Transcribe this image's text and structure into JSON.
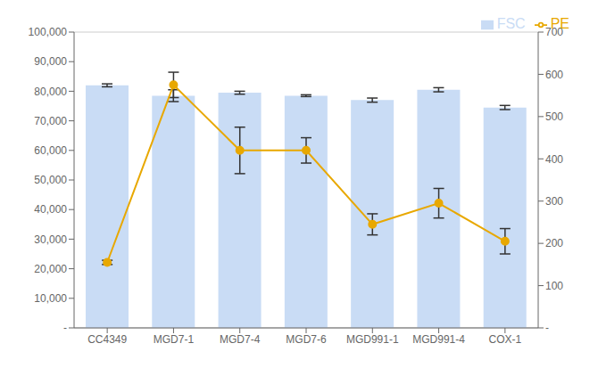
{
  "chart_data": {
    "type": "bar",
    "categories": [
      "CC4349",
      "MGD7-1",
      "MGD7-4",
      "MGD7-6",
      "MGD991-1",
      "MGD991-4",
      "COX-1"
    ],
    "series": [
      {
        "name": "FSC",
        "type": "bar",
        "color": "#c9dcf5",
        "values": [
          82000,
          78500,
          79500,
          78500,
          77000,
          80500,
          74500
        ],
        "errors": [
          500,
          2000,
          500,
          300,
          700,
          700,
          700
        ]
      },
      {
        "name": "PE",
        "type": "line",
        "axis": "y2",
        "color": "#e8a800",
        "marker": "circle",
        "values": [
          155,
          575,
          420,
          420,
          245,
          295,
          205
        ],
        "errors": [
          5,
          30,
          55,
          30,
          25,
          35,
          30
        ]
      }
    ],
    "ylim": [
      0,
      100000
    ],
    "yticks": [
      {
        "value": 0,
        "label": "-"
      },
      {
        "value": 10000,
        "label": "10,000"
      },
      {
        "value": 20000,
        "label": "20,000"
      },
      {
        "value": 30000,
        "label": "30,000"
      },
      {
        "value": 40000,
        "label": "40,000"
      },
      {
        "value": 50000,
        "label": "50,000"
      },
      {
        "value": 60000,
        "label": "60,000"
      },
      {
        "value": 70000,
        "label": "70,000"
      },
      {
        "value": 80000,
        "label": "80,000"
      },
      {
        "value": 90000,
        "label": "90,000"
      },
      {
        "value": 100000,
        "label": "100,000"
      }
    ],
    "y2lim": [
      0,
      700
    ],
    "y2ticks": [
      {
        "value": 0,
        "label": "-"
      },
      100,
      200,
      300,
      400,
      500,
      600,
      700
    ],
    "grid": true,
    "legend": "upper right"
  }
}
